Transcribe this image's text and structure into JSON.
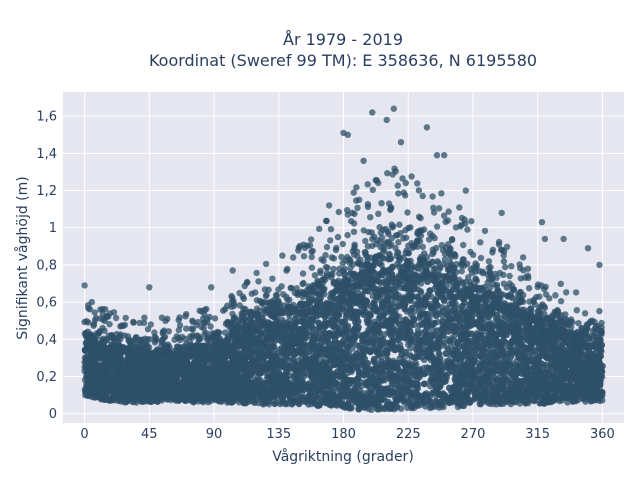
{
  "chart_data": {
    "type": "scatter",
    "title_line1": "År 1979 - 2019",
    "title_line2": "Koordinat (Sweref 99 TM): E 358636, N 6195580",
    "xlabel": "Vågriktning (grader)",
    "ylabel": "Signifikant våghöjd (m)",
    "xlim": [
      -15,
      375
    ],
    "ylim": [
      -0.05,
      1.73
    ],
    "xticks": [
      0,
      45,
      90,
      135,
      180,
      225,
      270,
      315,
      360
    ],
    "xtick_labels": [
      "0",
      "45",
      "90",
      "135",
      "180",
      "225",
      "270",
      "315",
      "360"
    ],
    "yticks": [
      0,
      0.2,
      0.4,
      0.6,
      0.8,
      1.0,
      1.2,
      1.4,
      1.6
    ],
    "ytick_labels": [
      "0",
      "0,2",
      "0,4",
      "0,6",
      "0,8",
      "1",
      "1,2",
      "1,4",
      "1,6"
    ],
    "marker_color": "#2e5068",
    "plot_bg": "#e5e6f0",
    "grid": true,
    "envelope": {
      "direction": [
        0,
        15,
        30,
        45,
        60,
        75,
        90,
        105,
        120,
        135,
        150,
        165,
        180,
        195,
        210,
        225,
        240,
        255,
        270,
        285,
        300,
        315,
        330,
        345,
        360
      ],
      "min_height": [
        0.1,
        0.07,
        0.06,
        0.06,
        0.07,
        0.06,
        0.06,
        0.06,
        0.05,
        0.05,
        0.05,
        0.04,
        0.03,
        0.02,
        0.02,
        0.03,
        0.03,
        0.03,
        0.04,
        0.05,
        0.05,
        0.05,
        0.06,
        0.06,
        0.07
      ],
      "dense_max_height": [
        0.45,
        0.45,
        0.42,
        0.4,
        0.4,
        0.42,
        0.45,
        0.52,
        0.6,
        0.65,
        0.7,
        0.78,
        0.88,
        0.98,
        1.02,
        1.02,
        0.98,
        0.9,
        0.82,
        0.75,
        0.68,
        0.6,
        0.55,
        0.5,
        0.5
      ]
    },
    "outliers": [
      {
        "x": 0,
        "y": 0.69
      },
      {
        "x": 5,
        "y": 0.6
      },
      {
        "x": 45,
        "y": 0.68
      },
      {
        "x": 88,
        "y": 0.68
      },
      {
        "x": 103,
        "y": 0.77
      },
      {
        "x": 145,
        "y": 0.84
      },
      {
        "x": 170,
        "y": 1.12
      },
      {
        "x": 180,
        "y": 1.51
      },
      {
        "x": 183,
        "y": 1.5
      },
      {
        "x": 194,
        "y": 1.36
      },
      {
        "x": 200,
        "y": 1.62
      },
      {
        "x": 210,
        "y": 1.58
      },
      {
        "x": 215,
        "y": 1.64
      },
      {
        "x": 220,
        "y": 1.46
      },
      {
        "x": 238,
        "y": 1.54
      },
      {
        "x": 245,
        "y": 1.39
      },
      {
        "x": 250,
        "y": 1.39
      },
      {
        "x": 265,
        "y": 1.2
      },
      {
        "x": 290,
        "y": 1.08
      },
      {
        "x": 318,
        "y": 1.03
      },
      {
        "x": 320,
        "y": 0.94
      },
      {
        "x": 333,
        "y": 0.94
      },
      {
        "x": 350,
        "y": 0.89
      },
      {
        "x": 358,
        "y": 0.8
      }
    ]
  }
}
